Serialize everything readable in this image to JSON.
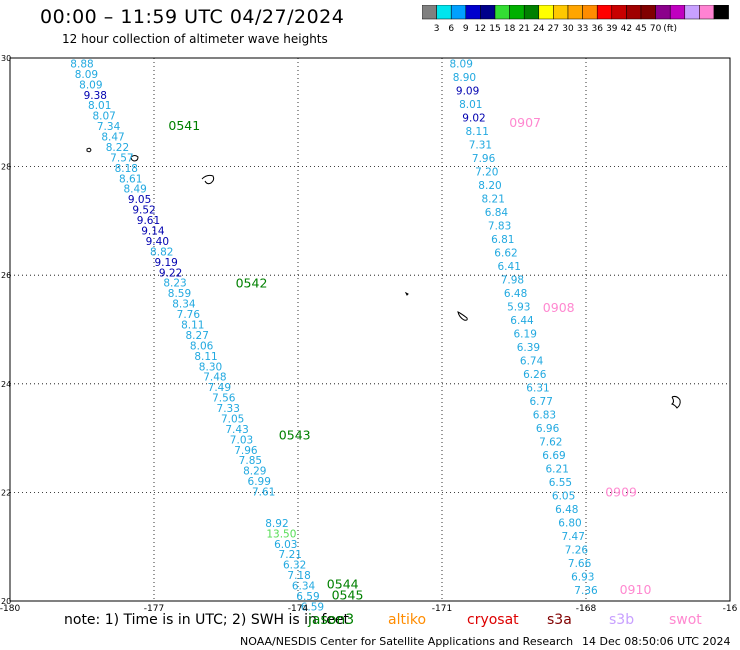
{
  "title": "00:00 – 11:59 UTC 04/27/2024",
  "subtitle": "12 hour collection of altimeter wave heights",
  "colorbar": {
    "colors": [
      "#808080",
      "#00e5ee",
      "#00a0ff",
      "#0000cd",
      "#00008b",
      "#33dd33",
      "#00b000",
      "#008000",
      "#ffff00",
      "#ffc800",
      "#ffa500",
      "#ff8c00",
      "#ff0000",
      "#c80000",
      "#a00000",
      "#800000",
      "#8b008b",
      "#c000c0",
      "#c8a0ff",
      "#ff82d2",
      "#000000"
    ],
    "labels": [
      "3",
      "6",
      "9",
      "12",
      "15",
      "18",
      "21",
      "24",
      "27",
      "30",
      "33",
      "36",
      "39",
      "42",
      "45",
      "70",
      "(ft)"
    ]
  },
  "note": "note: 1) Time is in UTC; 2) SWH is in feet",
  "satellites": [
    {
      "name": "jason3",
      "color": "#008000"
    },
    {
      "name": "altiko",
      "color": "#ff8c00"
    },
    {
      "name": "cryosat",
      "color": "#dd0000"
    },
    {
      "name": "s3a",
      "color": "#800000"
    },
    {
      "name": "s3b",
      "color": "#c8a0ff"
    },
    {
      "name": "swot",
      "color": "#ff88d0"
    }
  ],
  "credit": "NOAA/NESDIS Center for Satellite Applications and Research",
  "date_stamp": "14 Dec 08:50:06 UTC 2024",
  "chart_data": {
    "type": "scatter",
    "xlim": [
      -180,
      -165
    ],
    "ylim": [
      20,
      30
    ],
    "x_ticks": [
      "-180",
      "-177",
      "-174",
      "-171",
      "-168",
      "-16"
    ],
    "y_ticks": [
      "20",
      "22",
      "24",
      "26",
      "28",
      "30"
    ],
    "grid": "dotted",
    "tracks": [
      {
        "satellite": "jason3",
        "start": [
          -178.5,
          29.9
        ],
        "end": [
          -173.7,
          19.9
        ],
        "values": [
          "8.88",
          "8.09",
          "8.09",
          "9.38",
          "8.01",
          "8.07",
          "7.34",
          "8.47",
          "8.22",
          "7.57",
          "8.18",
          "8.61",
          "8.49",
          "9.05",
          "9.52",
          "9.61",
          "9.14",
          "9.40",
          "8.82",
          "9.19",
          "9.22",
          "8.23",
          "8.59",
          "8.34",
          "7.76",
          "8.11",
          "8.27",
          "8.06",
          "8.11",
          "8.30",
          "7.48",
          "7.49",
          "7.56",
          "7.33",
          "7.05",
          "7.43",
          "7.03",
          "7.96",
          "7.85",
          "8.29",
          "6.99",
          "7.61",
          "8.92",
          "13.50",
          "6.03",
          "7.21",
          "6.32",
          "7.18",
          "6.34",
          "6.59",
          "6.59"
        ],
        "gaps_after": [
          41
        ],
        "labels": [
          {
            "text": "0541",
            "lon": -176.7,
            "lat": 28.75
          },
          {
            "text": "0542",
            "lon": -175.3,
            "lat": 25.85
          },
          {
            "text": "0543",
            "lon": -174.4,
            "lat": 23.05
          },
          {
            "text": "0544",
            "lon": -173.4,
            "lat": 20.3
          },
          {
            "text": "0545",
            "lon": -173.3,
            "lat": 20.1
          }
        ]
      },
      {
        "satellite": "swot",
        "start": [
          -170.6,
          29.9
        ],
        "end": [
          -168.0,
          20.2
        ],
        "values": [
          "8.09",
          "8.90",
          "9.09",
          "8.01",
          "9.02",
          "8.11",
          "7.31",
          "7.96",
          "7.20",
          "8.20",
          "8.21",
          "6.84",
          "7.83",
          "6.81",
          "6.62",
          "6.41",
          "7.98",
          "6.48",
          "5.93",
          "6.44",
          "6.19",
          "6.39",
          "6.74",
          "6.26",
          "6.31",
          "6.77",
          "6.83",
          "6.96",
          "7.62",
          "6.69",
          "6.21",
          "6.55",
          "6.05",
          "6.48",
          "6.80",
          "7.47",
          "7.26",
          "7.66",
          "6.93",
          "7.36"
        ],
        "labels": [
          {
            "text": "0907",
            "lon": -169.6,
            "lat": 28.8
          },
          {
            "text": "0908",
            "lon": -168.9,
            "lat": 25.4
          },
          {
            "text": "0909",
            "lon": -167.6,
            "lat": 22.0
          },
          {
            "text": "0910",
            "lon": -167.3,
            "lat": 20.2
          }
        ]
      }
    ]
  }
}
